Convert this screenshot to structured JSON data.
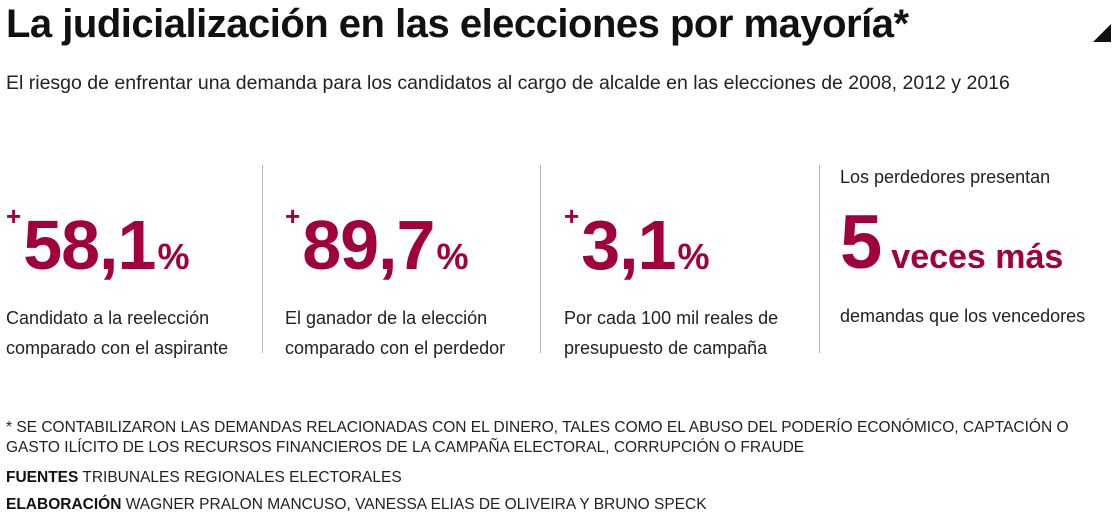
{
  "header": {
    "title": "La judicialización en las elecciones por mayoría*",
    "subtitle": "El riesgo de enfrentar una demanda para los candidatos al cargo de alcalde en las elecciones de 2008, 2012 y 2016",
    "corner_icon": "triangle-corner-icon"
  },
  "colors": {
    "accent": "#a0003c",
    "text": "#222222",
    "divider": "#b8b8b8"
  },
  "stats": [
    {
      "sign": "+",
      "value": "58,1",
      "unit": "%",
      "description_line1": "Candidato a la reelección",
      "description_line2": "comparado con el aspirante"
    },
    {
      "sign": "+",
      "value": "89,7",
      "unit": "%",
      "description_line1": "El ganador de la elección",
      "description_line2": "comparado con el perdedor"
    },
    {
      "sign": "+",
      "value": "3,1",
      "unit": "%",
      "description_line1": "Por cada 100 mil reales de",
      "description_line2": "presupuesto de campaña"
    },
    {
      "pre": "Los perdedores presentan",
      "value": "5",
      "tail": "veces más",
      "description_line1": "demandas que los vencedores"
    }
  ],
  "footer": {
    "footnote": "* Se contabilizaron las demandas relacionadas con el dinero, tales como el abuso del poderío económico, captación o gasto ilícito de los recursos financieros de la campaña electoral, corrupción o fraude",
    "sources_label": "FUENTES",
    "sources_value": "TRIBUNALES REGIONALES ELECTORALES",
    "credits_label": "ELABORACIÓN",
    "credits_value": "WAGNER PRALON MANCUSO, VANESSA ELIAS DE OLIVEIRA Y BRUNO SPECK"
  }
}
